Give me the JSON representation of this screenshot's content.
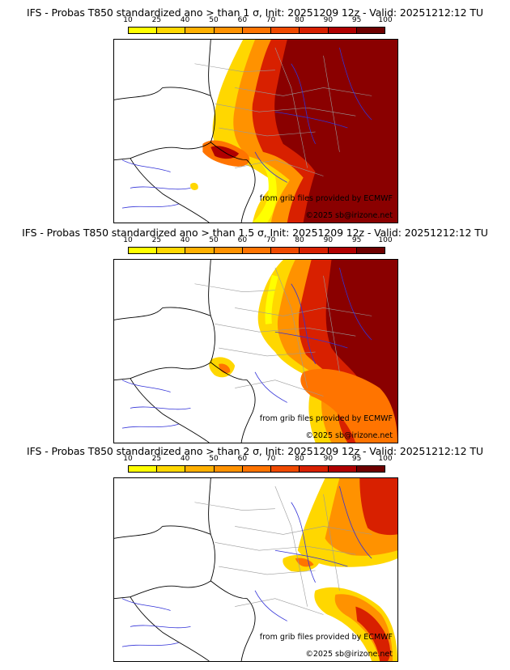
{
  "panels": [
    {
      "title": "IFS - Probas T850  standardized ano > than 1 σ, Init: 20251209 12z - Valid: 20251212:12 TU",
      "credit_source": "from grib files provided by ECMWF",
      "credit_copyright": "©2025 sb@irizone.net"
    },
    {
      "title": "IFS - Probas T850  standardized ano > than 1.5 σ, Init: 20251209 12z - Valid: 20251212:12 TU",
      "credit_source": "from grib files provided by ECMWF",
      "credit_copyright": "©2025 sb@irizone.net"
    },
    {
      "title": "IFS - Probas T850  standardized ano > than 2 σ, Init: 20251209 12z - Valid: 20251212:12 TU",
      "credit_source": "from grib files provided by ECMWF",
      "credit_copyright": "©2025 sb@irizone.net"
    }
  ],
  "colorbar": {
    "ticks": [
      "10",
      "25",
      "40",
      "50",
      "60",
      "70",
      "80",
      "90",
      "95",
      "100"
    ],
    "colors": [
      "#ffff00",
      "#ffd700",
      "#ffb000",
      "#ff9200",
      "#ff7400",
      "#f04a00",
      "#d82000",
      "#b00000",
      "#6e0000"
    ]
  }
}
